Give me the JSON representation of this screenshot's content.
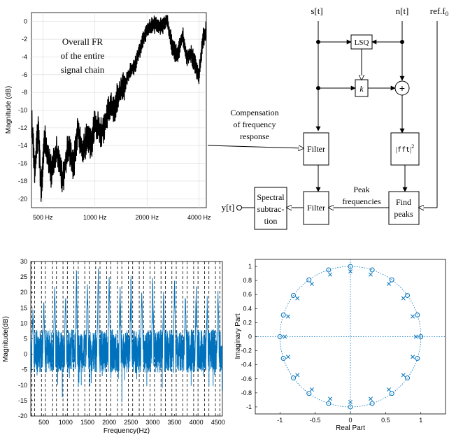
{
  "chart_data": [
    {
      "type": "line",
      "title": "",
      "annotation": [
        "Overall FR",
        "of the entire",
        "signal chain"
      ],
      "ylabel": "Magnitude (dB)",
      "xlabel": "",
      "x_scale": "log",
      "xlim": [
        430,
        4400
      ],
      "ylim": [
        -21,
        1
      ],
      "x_ticks": [
        500,
        1000,
        2000,
        4000
      ],
      "x_tick_labels": [
        "500 Hz",
        "1000 Hz",
        "2000 Hz",
        "4000 Hz"
      ],
      "y_ticks": [
        0,
        -2,
        -4,
        -6,
        -8,
        -10,
        -12,
        -14,
        -16,
        -18,
        -20
      ],
      "grid": true,
      "series": [
        {
          "color": "#000000",
          "x": [
            430,
            450,
            470,
            490,
            510,
            530,
            560,
            600,
            650,
            700,
            750,
            800,
            850,
            900,
            950,
            1000,
            1100,
            1200,
            1300,
            1400,
            1500,
            1600,
            1700,
            1800,
            1900,
            2000,
            2100,
            2200,
            2400,
            2600,
            2800,
            3000,
            3200,
            3400,
            3600,
            3800,
            4000,
            4200,
            4400
          ],
          "y": [
            -11,
            -17,
            -12,
            -19.5,
            -13,
            -15,
            -17,
            -14.5,
            -18,
            -14,
            -16.5,
            -12,
            -15,
            -13,
            -14,
            -11.5,
            -12.5,
            -10,
            -9.5,
            -8,
            -7,
            -5.5,
            -5,
            -3.5,
            -2,
            -1,
            -0.5,
            -0.3,
            -0.5,
            0.2,
            -3,
            -4,
            -1.5,
            -4,
            -3.5,
            -5,
            -6,
            -2,
            -1
          ]
        }
      ]
    },
    {
      "type": "line",
      "title": "",
      "xlabel": "Frequency(Hz)",
      "ylabel": "Magnitude(dB)",
      "xlim": [
        200,
        4600
      ],
      "ylim": [
        -20,
        30
      ],
      "x_ticks": [
        500,
        1000,
        1500,
        2000,
        2500,
        3000,
        3500,
        4000,
        4500
      ],
      "y_ticks": [
        -20,
        -15,
        -10,
        -5,
        0,
        5,
        10,
        15,
        20,
        25,
        30
      ],
      "grid": false,
      "color": "#0072bd",
      "peak_frequencies": [
        250,
        500,
        750,
        1000,
        1250,
        1500,
        1750,
        2000,
        2250,
        2500,
        2750,
        3000,
        3250,
        3500,
        3750,
        4000,
        4250,
        4500
      ],
      "peak_levels": [
        14,
        17,
        23,
        19,
        26,
        23,
        27,
        26,
        22,
        25,
        21,
        24,
        20,
        23,
        19,
        23,
        17,
        20
      ],
      "dashed_vertical_lines": [
        225,
        290,
        445,
        535,
        700,
        790,
        940,
        1040,
        1190,
        1290,
        1440,
        1540,
        1690,
        1790,
        1940,
        2040,
        2190,
        2290,
        2440,
        2540,
        2690,
        2790,
        2940,
        3040,
        3190,
        3290,
        3440,
        3540,
        3690,
        3790,
        3940,
        4040,
        4190,
        4290,
        4440,
        4540
      ]
    },
    {
      "type": "scatter",
      "title": "",
      "xlabel": "Real Part",
      "ylabel": "Imaginary Part",
      "xlim": [
        -1.35,
        1.35
      ],
      "ylim": [
        -1.1,
        1.1
      ],
      "x_ticks": [
        -1,
        -0.5,
        0,
        0.5,
        1
      ],
      "y_ticks": [
        -1,
        -0.8,
        -0.6,
        -0.4,
        -0.2,
        0,
        0.2,
        0.4,
        0.6,
        0.8,
        1
      ],
      "color": "#0072bd",
      "unit_circle": true,
      "zeros_markers": "o",
      "poles_markers": "x",
      "zeros_angles_deg": [
        0,
        18,
        36,
        54,
        72,
        90,
        108,
        126,
        144,
        162,
        180,
        198,
        216,
        234,
        252,
        270,
        288,
        306,
        324,
        342
      ],
      "zeros_radius": 1.0,
      "poles_angles_deg": [
        0,
        18,
        36,
        54,
        72,
        90,
        108,
        126,
        144,
        162,
        180,
        198,
        216,
        234,
        252,
        270,
        288,
        306,
        324,
        342
      ],
      "poles_radius": 0.93
    }
  ],
  "diagram": {
    "inputs": {
      "s": "s[t]",
      "n": "n[t]",
      "ref": "ref.f",
      "ref_sub": "0"
    },
    "blocks": {
      "lsq": "LSQ",
      "k": "k",
      "sum": "+",
      "filter_top": "Filter",
      "fft_a": "|",
      "fft_b": "fft",
      "fft_c": "|",
      "fft_sup": "2",
      "find_peaks": [
        "Find",
        "peaks"
      ],
      "filter_bottom": "Filter",
      "spectral_subtraction": [
        "Spectral",
        "subtrac-",
        "tion"
      ]
    },
    "labels": {
      "compensation": [
        "Compensation",
        "of frequency",
        "response"
      ],
      "peak_freq": [
        "Peak",
        "frequencies"
      ],
      "output": "y[t]"
    }
  }
}
